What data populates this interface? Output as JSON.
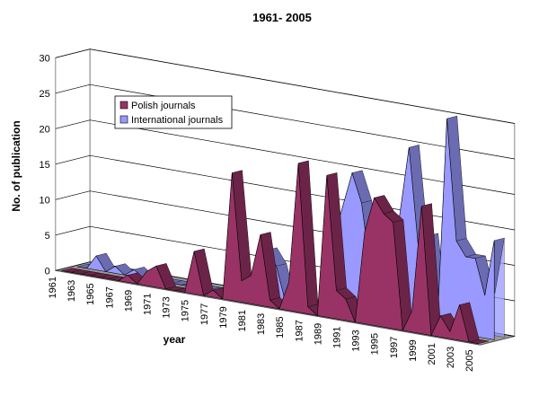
{
  "chart_data": {
    "type": "area3d",
    "title": "1961- 2005",
    "x_label": "year",
    "y_label": "No. of publication",
    "categories": [
      "1961",
      null,
      "1963",
      null,
      "1965",
      null,
      "1967",
      null,
      "1969",
      null,
      "1971",
      null,
      "1973",
      null,
      "1975",
      null,
      "1977",
      null,
      "1979",
      null,
      "1981",
      null,
      "1983",
      null,
      "1985",
      null,
      "1987",
      null,
      "1989",
      null,
      "1991",
      null,
      "1993",
      null,
      "1995",
      null,
      "1997",
      null,
      "1999",
      null,
      "2001",
      null,
      "2003",
      null,
      "2005"
    ],
    "series": [
      {
        "name": "Polish journals",
        "color": "#993366",
        "values": [
          0,
          0,
          0,
          0,
          0,
          0,
          0,
          1,
          0,
          2,
          3,
          0,
          0,
          0,
          6,
          0,
          1,
          0,
          18,
          3,
          4,
          10,
          1,
          0,
          4,
          21,
          1,
          0,
          20,
          4,
          3,
          0,
          13,
          18,
          16,
          15,
          0,
          3,
          18,
          0,
          3,
          1,
          5,
          0,
          0
        ]
      },
      {
        "name": "International journals",
        "color": "#9999ff",
        "values": [
          0,
          0,
          2,
          0,
          1,
          0,
          1,
          0,
          0,
          0,
          0,
          0,
          0,
          0,
          0,
          0,
          0,
          1,
          0,
          0,
          7,
          5,
          0,
          0,
          1,
          0,
          0,
          10,
          15,
          20,
          16,
          6,
          7,
          10,
          15,
          25,
          11,
          13,
          1,
          30,
          13,
          11,
          11,
          6,
          14
        ]
      }
    ],
    "ylim": [
      0,
      30
    ],
    "yticks": [
      0,
      5,
      10,
      15,
      20,
      25,
      30
    ],
    "grid": true,
    "legend": "top-left"
  }
}
